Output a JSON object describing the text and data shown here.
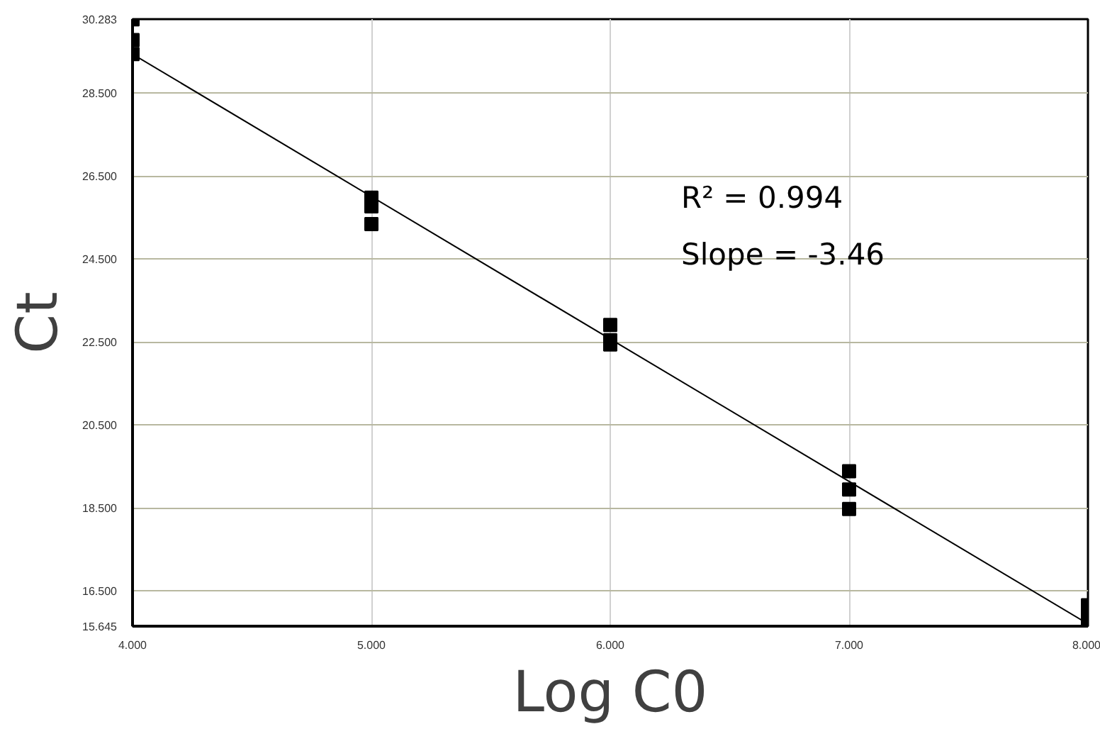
{
  "chart_data": {
    "type": "scatter",
    "xlabel": "Log C0",
    "ylabel": "Ct",
    "annotations": [
      "R² = 0.994",
      "Slope = -3.46"
    ],
    "series": [
      {
        "color": "#000000",
        "marker": "square",
        "x": [
          4,
          4,
          4,
          5,
          5,
          5,
          6,
          6,
          6,
          7,
          7,
          7,
          8,
          8,
          8
        ],
        "values": [
          30.28,
          29.78,
          29.44,
          25.98,
          25.77,
          25.34,
          22.91,
          22.54,
          22.44,
          19.38,
          18.94,
          18.47,
          16.15,
          15.92,
          15.65
        ]
      },
      {
        "type": "line",
        "color": "#000000",
        "x": [
          4,
          8
        ],
        "values": [
          29.44,
          15.7
        ]
      }
    ],
    "xlim": [
      4,
      8
    ],
    "ylim": [
      15.645,
      30.283
    ],
    "xticks": [
      {
        "value": 4,
        "label": "4.000"
      },
      {
        "value": 5,
        "label": "5.000"
      },
      {
        "value": 6,
        "label": "6.000"
      },
      {
        "value": 7,
        "label": "7.000"
      },
      {
        "value": 8,
        "label": "8.000"
      }
    ],
    "yticks": [
      {
        "value": 15.645,
        "label": "15.645"
      },
      {
        "value": 16.5,
        "label": "16.500"
      },
      {
        "value": 18.5,
        "label": "18.500"
      },
      {
        "value": 20.5,
        "label": "20.500"
      },
      {
        "value": 22.5,
        "label": "22.500"
      },
      {
        "value": 24.5,
        "label": "24.500"
      },
      {
        "value": 26.5,
        "label": "26.500"
      },
      {
        "value": 28.5,
        "label": "28.500"
      },
      {
        "value": 30.283,
        "label": "30.283"
      }
    ],
    "grid": true
  }
}
